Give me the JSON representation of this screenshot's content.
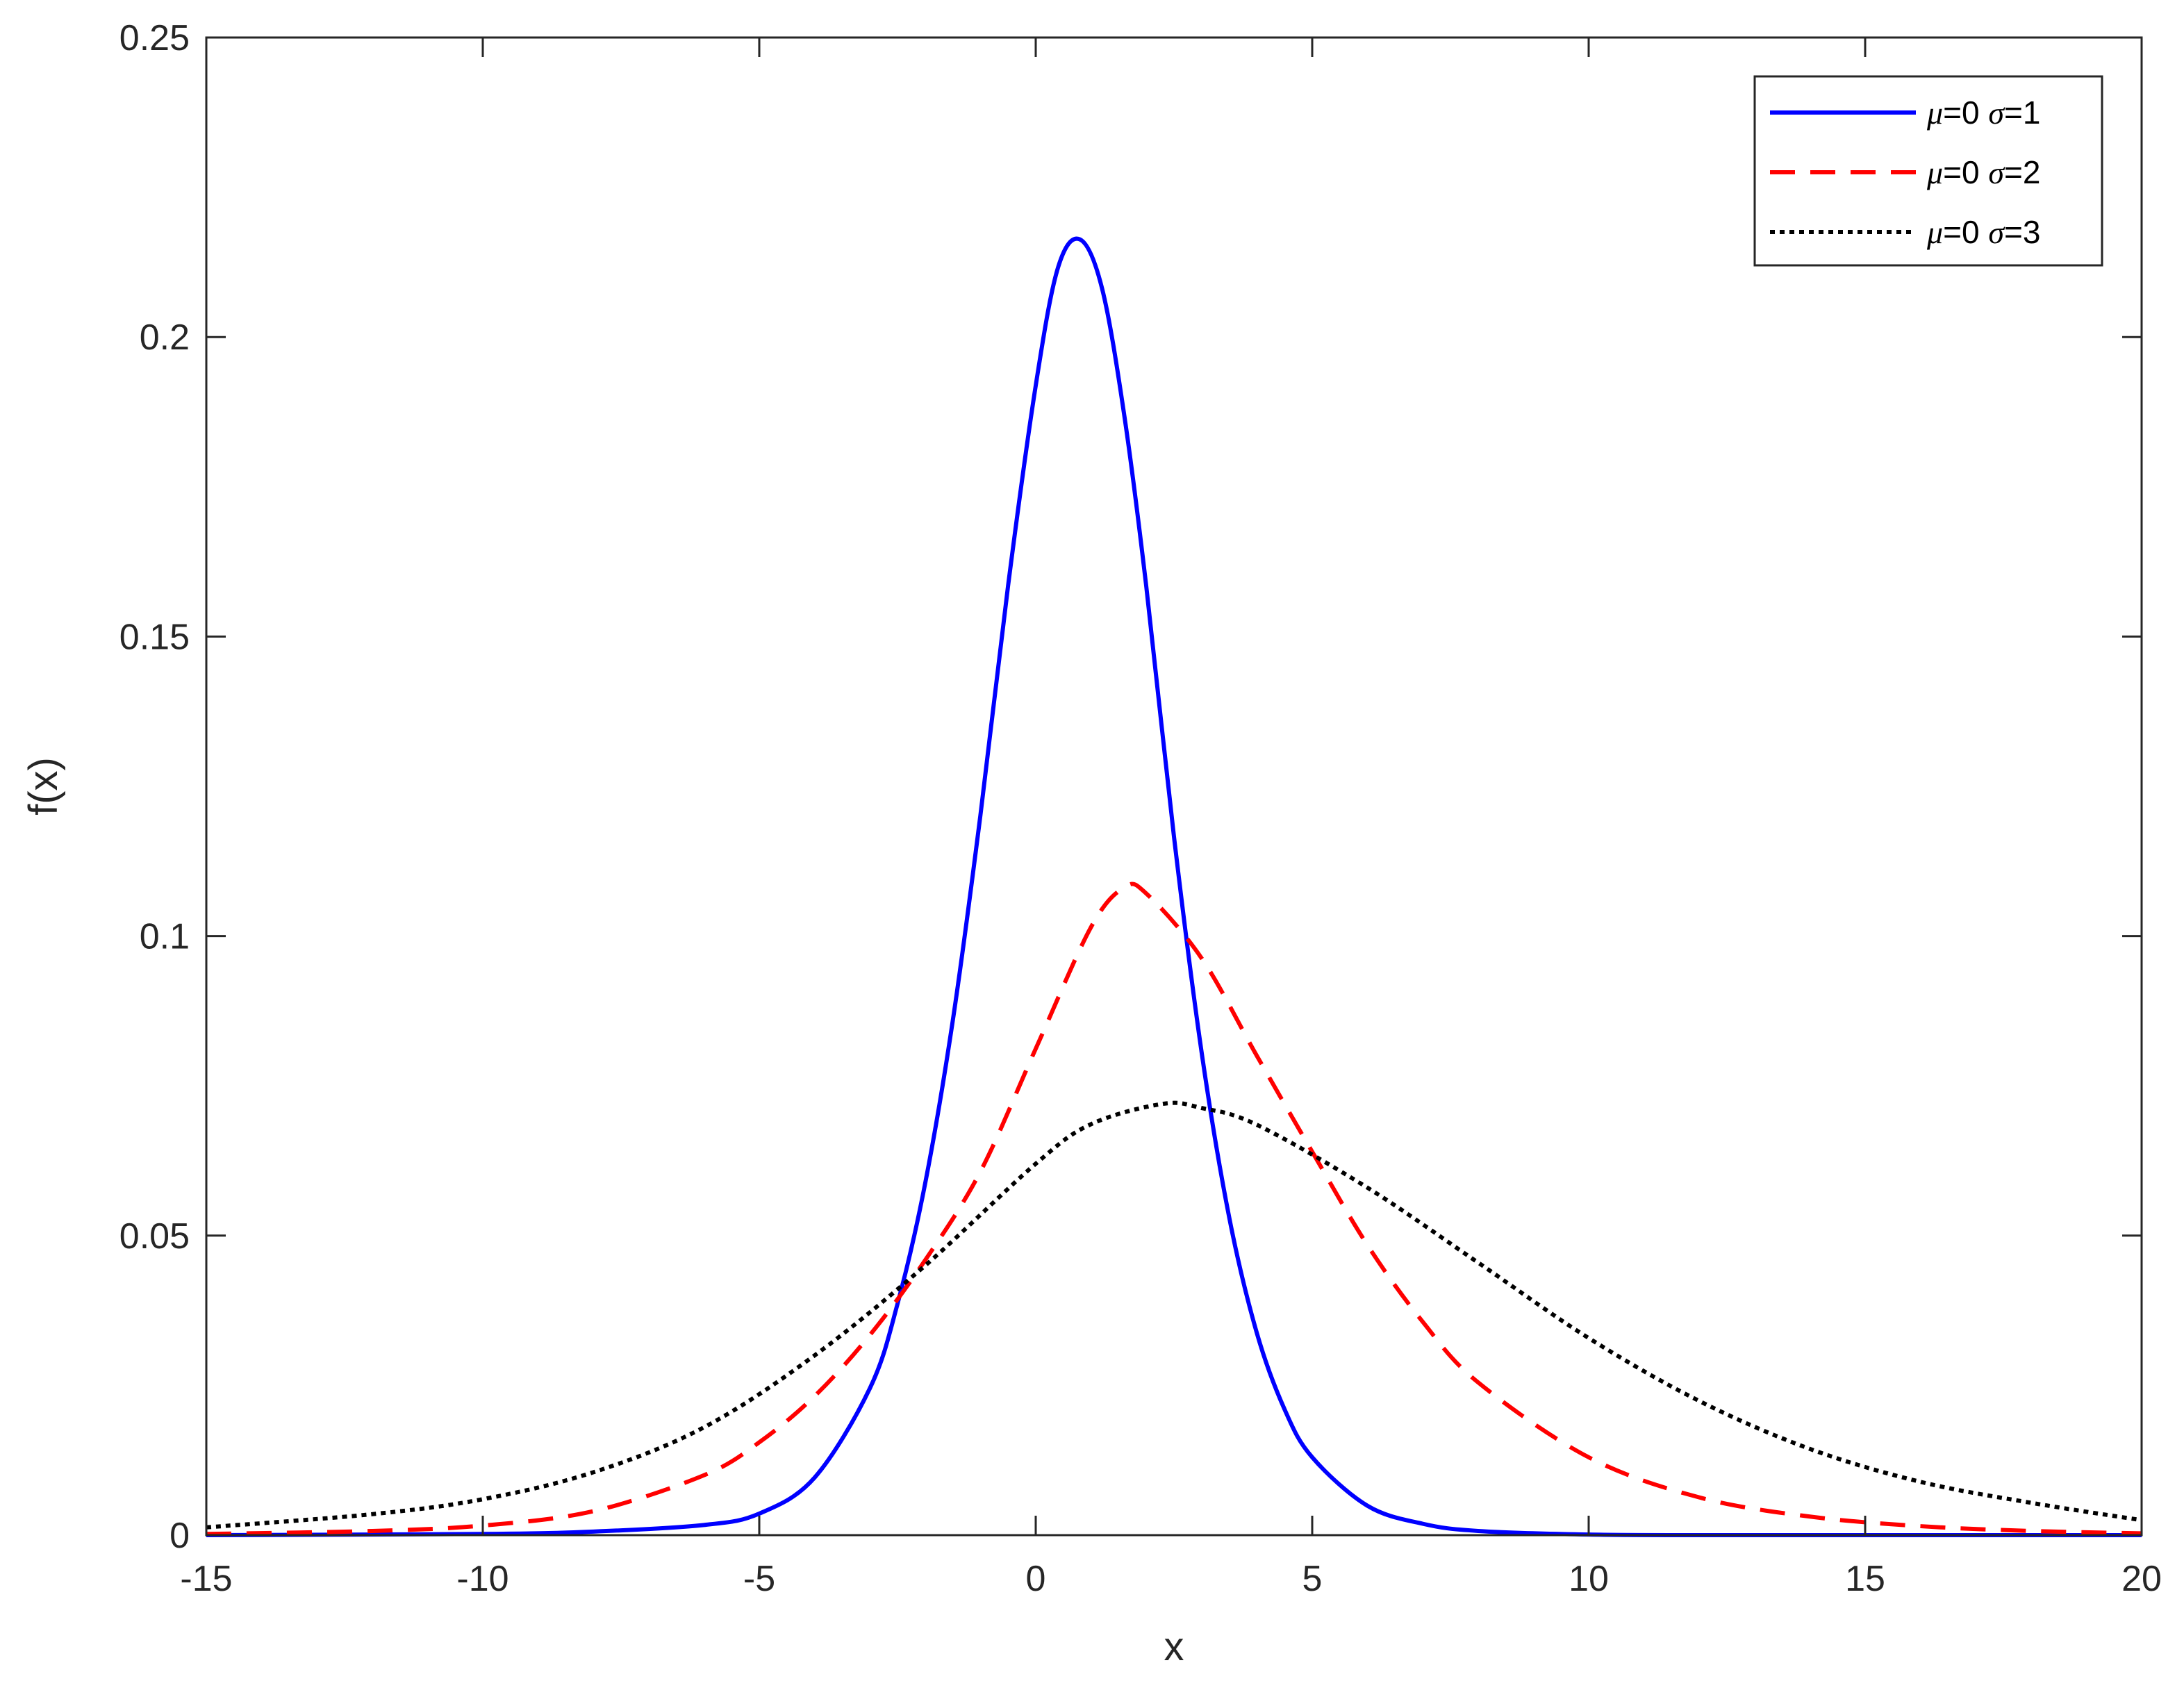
{
  "chart_data": {
    "type": "line",
    "xlabel": "x",
    "ylabel": "f(x)",
    "xlim": [
      -15,
      20
    ],
    "ylim": [
      0,
      0.25
    ],
    "xticks": [
      -15,
      -10,
      -5,
      0,
      5,
      10,
      15,
      20
    ],
    "yticks": [
      0,
      0.05,
      0.1,
      0.15,
      0.2,
      0.25
    ],
    "xtick_labels": [
      "-15",
      "-10",
      "-5",
      "0",
      "5",
      "10",
      "15",
      "20"
    ],
    "ytick_labels": [
      "0",
      "0.05",
      "0.1",
      "0.15",
      "0.2",
      "0.25"
    ],
    "grid": false,
    "legend_position": "top-right",
    "series": [
      {
        "name_mu": "μ",
        "name_mid": "=0 ",
        "name_sigma": "σ",
        "name_end": "=1",
        "color": "#0000ff",
        "style": "solid",
        "x": [
          -15,
          -10,
          -8,
          -6,
          -5,
          -4,
          -3,
          -2.5,
          -2,
          -1.5,
          -1,
          -0.5,
          0,
          0.4,
          0.8,
          1.2,
          1.6,
          2,
          2.5,
          3,
          3.5,
          4,
          4.5,
          5,
          6,
          7,
          8,
          10,
          12,
          15,
          20
        ],
        "y": [
          0.0,
          0.0002,
          0.0006,
          0.0017,
          0.0036,
          0.0096,
          0.0245,
          0.0386,
          0.0587,
          0.0859,
          0.1202,
          0.1585,
          0.1919,
          0.2115,
          0.2163,
          0.2081,
          0.187,
          0.1583,
          0.1166,
          0.0806,
          0.053,
          0.0337,
          0.021,
          0.013,
          0.0049,
          0.0019,
          0.0007,
          0.0001,
          0.0,
          0.0,
          0.0
        ]
      },
      {
        "name_mu": "μ",
        "name_mid": "=0 ",
        "name_sigma": "σ",
        "name_end": "=2",
        "color": "#ff0000",
        "style": "dashed",
        "x": [
          -15,
          -12,
          -10,
          -8,
          -6,
          -5,
          -4,
          -3,
          -2,
          -1,
          0,
          1,
          1.6,
          2,
          3,
          4,
          5,
          6,
          7,
          8,
          10,
          12,
          14,
          16,
          18,
          20
        ],
        "y": [
          0.0002,
          0.0007,
          0.0016,
          0.004,
          0.01,
          0.0155,
          0.0232,
          0.0334,
          0.0459,
          0.0607,
          0.0812,
          0.1015,
          0.1081,
          0.1071,
          0.0963,
          0.08,
          0.064,
          0.0484,
          0.0356,
          0.0255,
          0.013,
          0.0063,
          0.0031,
          0.0015,
          0.0007,
          0.0003
        ]
      },
      {
        "name_mu": "μ",
        "name_mid": "=0 ",
        "name_sigma": "σ",
        "name_end": "=3",
        "color": "#000000",
        "style": "dotted",
        "x": [
          -15,
          -12,
          -10,
          -8,
          -6,
          -4,
          -2,
          0,
          1,
          2.3,
          3,
          4,
          6,
          8,
          10,
          12,
          14,
          16,
          18,
          20
        ],
        "y": [
          0.0013,
          0.0035,
          0.006,
          0.0105,
          0.018,
          0.03,
          0.045,
          0.062,
          0.0686,
          0.072,
          0.0713,
          0.0685,
          0.058,
          0.0455,
          0.0329,
          0.0224,
          0.0144,
          0.0089,
          0.0054,
          0.0025
        ]
      }
    ]
  }
}
